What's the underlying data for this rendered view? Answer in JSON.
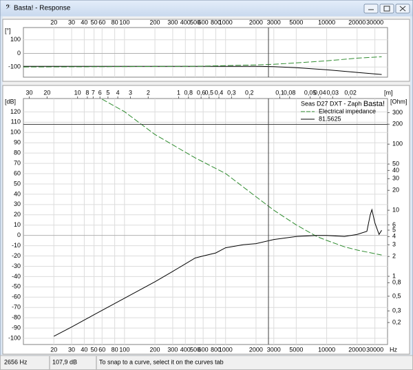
{
  "window": {
    "title": "Basta! - Response"
  },
  "chart_data": [
    {
      "type": "line",
      "y_label": "[°]",
      "x_scale": "log",
      "xlim": [
        10,
        40000
      ],
      "ylim": [
        -175,
        190
      ],
      "xticks": [
        20,
        30,
        40,
        50,
        60,
        80,
        100,
        200,
        300,
        400,
        500,
        600,
        800,
        1000,
        2000,
        3000,
        5000,
        10000,
        20000,
        30000
      ],
      "yticks": [
        100,
        0,
        -100
      ],
      "grid": true,
      "series": [
        {
          "color": "#000000",
          "line_style": "solid",
          "x": [
            10,
            100,
            1000,
            2000,
            3000,
            5000,
            10000,
            20000,
            35000
          ],
          "values": [
            -95,
            -95,
            -95,
            -95,
            -98,
            -105,
            -120,
            -140,
            -155
          ]
        },
        {
          "color": "#2e8b2e",
          "line_style": "dashed",
          "x": [
            10,
            100,
            500,
            1000,
            2000,
            3000,
            5000,
            10000,
            20000,
            35000
          ],
          "values": [
            -100,
            -97,
            -95,
            -90,
            -85,
            -80,
            -70,
            -55,
            -35,
            -25
          ]
        }
      ]
    },
    {
      "type": "line",
      "title": "Seas D27 DXT - Zaph",
      "watermark": "Basta!",
      "y_label": "[dB]",
      "y2_label": "[Ohm]",
      "x_unit": "Hz",
      "x2_label": "[m]",
      "x_scale": "log",
      "x2_scale": "log",
      "y2_scale": "log",
      "legend": "upper right",
      "grid": true,
      "xlim": [
        10,
        40000
      ],
      "xticks": [
        20,
        30,
        40,
        50,
        60,
        80,
        100,
        200,
        300,
        400,
        500,
        600,
        800,
        1000,
        2000,
        3000,
        5000,
        10000,
        20000,
        30000
      ],
      "x2lim": [
        34.3,
        0.0086
      ],
      "x2ticks": [
        30,
        20,
        10,
        8,
        7,
        6,
        5,
        4,
        3,
        2,
        1,
        {
          "value": 0.8,
          "label": "0,8"
        },
        {
          "value": 0.6,
          "label": "0,6"
        },
        {
          "value": 0.5,
          "label": "0,5"
        },
        {
          "value": 0.4,
          "label": "0,4"
        },
        {
          "value": 0.3,
          "label": "0,3"
        },
        {
          "value": 0.2,
          "label": "0,2"
        },
        {
          "value": 0.1,
          "label": "0,1"
        },
        {
          "value": 0.08,
          "label": "0,08"
        },
        {
          "value": 0.05,
          "label": "0,05"
        },
        {
          "value": 0.04,
          "label": "0,04"
        },
        {
          "value": 0.03,
          "label": "0,03"
        },
        {
          "value": 0.02,
          "label": "0,02"
        }
      ],
      "ylim": [
        -106,
        133
      ],
      "yticks": [
        120,
        110,
        100,
        90,
        80,
        70,
        60,
        50,
        40,
        30,
        20,
        10,
        0,
        -10,
        -20,
        -30,
        -40,
        -50,
        -60,
        -70,
        -80,
        -90,
        -100
      ],
      "y2lim": [
        0.093,
        490
      ],
      "y2ticks": [
        300,
        200,
        100,
        50,
        40,
        30,
        20,
        10,
        6,
        5,
        4,
        3,
        2,
        1,
        {
          "value": 0.8,
          "label": "0,8"
        },
        {
          "value": 0.5,
          "label": "0,5"
        },
        {
          "value": 0.3,
          "label": "0,3"
        },
        {
          "value": 0.2,
          "label": "0,2"
        }
      ],
      "series": [
        {
          "name": "Electrical impedance",
          "color": "#2e8b2e",
          "line_style": "dashed",
          "axis": "y2",
          "x": [
            60,
            100,
            200,
            500,
            1000,
            2000,
            3000,
            5000,
            8000,
            10000,
            15000,
            20000,
            30000,
            35000
          ],
          "values": [
            480,
            310,
            140,
            62,
            36,
            16,
            10,
            6,
            4,
            3.5,
            2.8,
            2.5,
            2.2,
            2.1
          ]
        },
        {
          "name": "81.5625",
          "color": "#000000",
          "line_style": "solid",
          "x": [
            20,
            30,
            50,
            100,
            200,
            300,
            500,
            600,
            800,
            1000,
            1500,
            2000,
            3000,
            5000,
            8000,
            10000,
            15000,
            20000,
            25000,
            27000,
            28000,
            30000,
            33000,
            35000
          ],
          "values": [
            -98,
            -89,
            -77,
            -61,
            -45,
            -35,
            -22,
            -20,
            -17,
            -12,
            -9,
            -8,
            -4,
            -1,
            0,
            0,
            -1,
            1,
            4,
            20,
            25,
            12,
            1,
            5
          ]
        }
      ]
    }
  ],
  "status_bar": {
    "frequency": {
      "value": 2656,
      "label": "2656 Hz"
    },
    "level": {
      "value": 107.9,
      "label": "107,9 dB"
    },
    "hint": "To snap to a curve, select it on the curves tab"
  }
}
